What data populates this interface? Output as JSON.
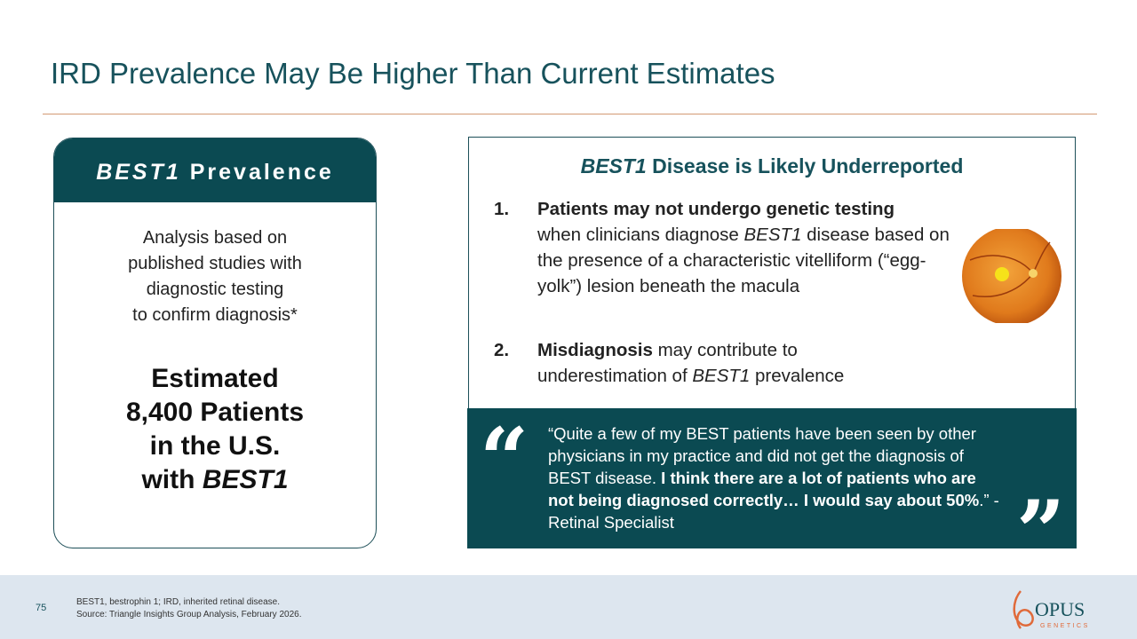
{
  "title": "IRD Prevalence May Be Higher Than Current Estimates",
  "left_card": {
    "header": {
      "italic": "BEST1",
      "rest": "Prevalence"
    },
    "body_lines": [
      "Analysis based on",
      "published studies with",
      "diagnostic testing",
      "to confirm diagnosis*"
    ],
    "estimate_lines": [
      "Estimated",
      "8,400 Patients",
      "in the U.S."
    ],
    "estimate_last": {
      "text": "with",
      "italic": "BEST1"
    }
  },
  "right_card": {
    "title": {
      "italic": "BEST1",
      "rest": "Disease is Likely Underreported"
    },
    "items": [
      {
        "number": "1.",
        "bold": "Patients may not undergo genetic testing",
        "text_a": "when clinicians diagnose",
        "italic": "BEST1",
        "text_b": "disease based on the presence of a characteristic vitelliform (“egg-yolk”) lesion beneath the macula"
      },
      {
        "number": "2.",
        "bold": "Misdiagnosis",
        "text_a": "may contribute to underestimation of",
        "italic": "BEST1",
        "text_b": "prevalence"
      }
    ]
  },
  "quote": {
    "open_mark": "“",
    "close_mark": "”",
    "text_a": "“Quite a few of my BEST patients have been seen by other physicians in my practice and did not get the diagnosis of BEST disease.",
    "bold": "I think there are a lot of patients who are not being diagnosed correctly… I would say about 50%",
    "text_b": ".” - Retinal Specialist"
  },
  "footer": {
    "page_number": "75",
    "notes": [
      "BEST1, bestrophin 1; IRD, inherited retinal disease.",
      "Source: Triangle Insights Group Analysis, February 2026."
    ],
    "logo": {
      "name": "OPUS",
      "sub": "GENETICS"
    }
  }
}
